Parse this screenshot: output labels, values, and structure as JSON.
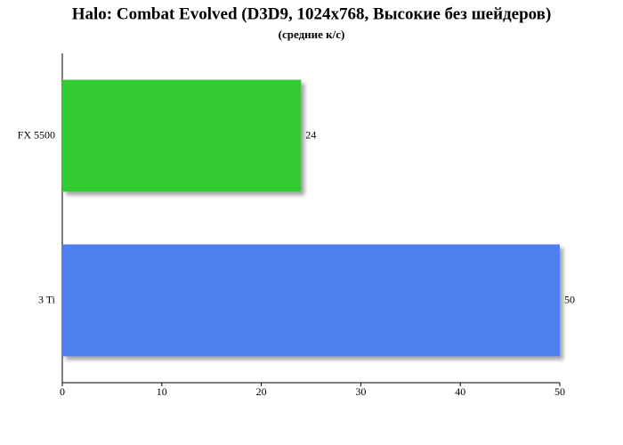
{
  "chart_data": {
    "type": "bar",
    "orientation": "horizontal",
    "title": "Halo: Combat Evolved (D3D9, 1024x768, Высокие без шейдеров)",
    "subtitle": "(средние к/с)",
    "categories": [
      "FX 5500",
      "3 Ti"
    ],
    "values": [
      24,
      50
    ],
    "colors": [
      "#33cc33",
      "#4f7fef"
    ],
    "xlim": [
      0,
      50
    ],
    "xticks": [
      0,
      10,
      20,
      30,
      40,
      50
    ]
  }
}
